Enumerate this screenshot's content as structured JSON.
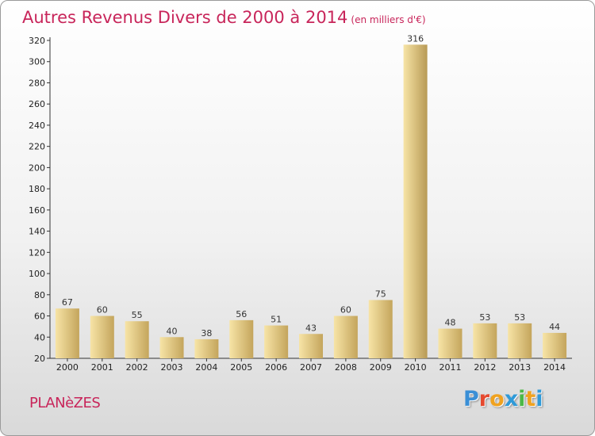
{
  "chart_data": {
    "type": "bar",
    "title": "Autres Revenus Divers de 2000 à 2014",
    "subtitle": "(en milliers d'€)",
    "categories": [
      "2000",
      "2001",
      "2002",
      "2003",
      "2004",
      "2005",
      "2006",
      "2007",
      "2008",
      "2009",
      "2010",
      "2011",
      "2012",
      "2013",
      "2014"
    ],
    "values": [
      67,
      60,
      55,
      40,
      38,
      56,
      51,
      43,
      60,
      75,
      316,
      48,
      53,
      53,
      44
    ],
    "ylim": [
      20,
      320
    ],
    "yticks": [
      20,
      40,
      60,
      80,
      100,
      120,
      140,
      160,
      180,
      200,
      220,
      240,
      260,
      280,
      300,
      320
    ],
    "grid": false,
    "colors": {
      "bar_light": "#f7e4a6",
      "bar_dark": "#c4a55c",
      "bar_highlight_dark": "#b89a55"
    }
  },
  "footer": {
    "commune": "PLANèZES",
    "logo": [
      "P",
      "r",
      "o",
      "x",
      "i",
      "t",
      "i"
    ],
    "logo_colors": [
      "#3a8fd6",
      "#e5492f",
      "#f0a21f",
      "#2f9ad8",
      "#4cb847",
      "#f0a21f",
      "#2f9ad8"
    ]
  }
}
